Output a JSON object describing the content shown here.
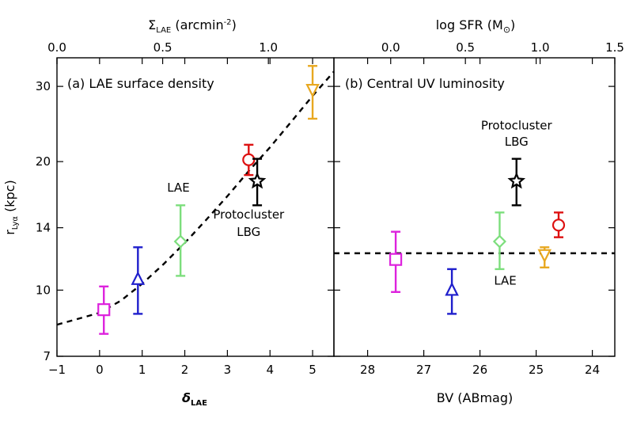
{
  "chart_data": [
    {
      "type": "scatter",
      "panel_label": "(a) LAE surface density",
      "xlabel": "δ_LAE",
      "xlabel_main": "δ",
      "xlabel_sub": "LAE",
      "top_xlabel_main": "Σ",
      "top_xlabel_sub": "LAE",
      "top_xlabel_rest": " (arcmin",
      "top_xlabel_sup": "-2",
      "top_xlabel_end": ")",
      "ylabel_main": "r",
      "ylabel_sub": "Lyα",
      "ylabel_rest": " (kpc)",
      "xlim": [
        -1,
        5.5
      ],
      "top_xlim": [
        0.0,
        1.31
      ],
      "ylim": [
        7,
        35
      ],
      "yscale": "log",
      "xticks": [
        "−1",
        "0",
        "1",
        "2",
        "3",
        "4",
        "5"
      ],
      "top_xticks": [
        "0.0",
        "0.5",
        "1.0"
      ],
      "yticks": [
        "7",
        "10",
        "14",
        "20",
        "30"
      ],
      "points": [
        {
          "x": 0.1,
          "y": 9.0,
          "y_lo": 7.9,
          "y_hi": 10.2,
          "marker": "square",
          "color": "#dd22dd"
        },
        {
          "x": 0.9,
          "y": 10.6,
          "y_lo": 8.8,
          "y_hi": 12.6,
          "marker": "triangle-up",
          "color": "#1f1fcc"
        },
        {
          "x": 1.9,
          "y": 13.0,
          "y_lo": 10.8,
          "y_hi": 15.8,
          "marker": "diamond",
          "color": "#7cde7c"
        },
        {
          "x": 3.5,
          "y": 20.2,
          "y_lo": 18.6,
          "y_hi": 21.9,
          "marker": "circle",
          "color": "#dd1111"
        },
        {
          "x": 3.7,
          "y": 18.0,
          "y_lo": 15.8,
          "y_hi": 20.3,
          "marker": "star",
          "color": "#000000"
        },
        {
          "x": 5.0,
          "y": 29.5,
          "y_lo": 25.2,
          "y_hi": 33.5,
          "marker": "triangle-down",
          "color": "#e8a820"
        }
      ],
      "fit_line": {
        "style": "dashed",
        "x": [
          -1,
          0,
          0.5,
          1,
          1.5,
          2,
          2.5,
          3,
          3.5,
          4,
          4.5,
          5,
          5.5
        ],
        "y": [
          8.3,
          8.85,
          9.45,
          10.35,
          11.5,
          12.9,
          14.6,
          16.6,
          19.0,
          21.6,
          24.8,
          28.5,
          32.5
        ]
      },
      "annotations": [
        {
          "text": "LAE",
          "x": 1.85,
          "y": 17.0
        },
        {
          "text": "Protocluster",
          "x": 3.5,
          "y": 14.7
        },
        {
          "text": "LBG",
          "x": 3.5,
          "y": 13.4
        }
      ]
    },
    {
      "type": "scatter",
      "panel_label": "(b) Central UV luminosity",
      "xlabel": "BV (ABmag)",
      "top_xlabel": "log SFR (M☉)",
      "top_xlabel_main": "log SFR (M",
      "top_xlabel_sym": "⊙",
      "top_xlabel_end": ")",
      "xlim": [
        28.6,
        23.6
      ],
      "x_reversed": true,
      "top_xlim": [
        -0.38,
        1.5
      ],
      "ylim": [
        7,
        35
      ],
      "yscale": "log",
      "xticks": [
        "28",
        "27",
        "26",
        "25",
        "24"
      ],
      "top_xticks": [
        "0.0",
        "0.5",
        "1.0",
        "1.5"
      ],
      "points": [
        {
          "x": 27.5,
          "y": 11.8,
          "y_lo": 9.9,
          "y_hi": 13.7,
          "marker": "square",
          "color": "#dd22dd"
        },
        {
          "x": 26.5,
          "y": 10.0,
          "y_lo": 8.8,
          "y_hi": 11.2,
          "marker": "triangle-up",
          "color": "#1f1fcc"
        },
        {
          "x": 25.65,
          "y": 13.0,
          "y_lo": 11.2,
          "y_hi": 15.2,
          "marker": "diamond",
          "color": "#7cde7c"
        },
        {
          "x": 25.35,
          "y": 18.0,
          "y_lo": 15.8,
          "y_hi": 20.3,
          "marker": "star",
          "color": "#000000"
        },
        {
          "x": 24.85,
          "y": 12.1,
          "y_lo": 11.3,
          "y_hi": 12.6,
          "marker": "triangle-down",
          "color": "#e8a820"
        },
        {
          "x": 24.6,
          "y": 14.2,
          "y_lo": 13.3,
          "y_hi": 15.2,
          "marker": "circle",
          "color": "#dd1111"
        }
      ],
      "hline": {
        "y": 12.2,
        "style": "dashed"
      },
      "annotations": [
        {
          "text": "Protocluster",
          "x": 25.35,
          "y": 23.8
        },
        {
          "text": "LBG",
          "x": 25.35,
          "y": 21.8
        },
        {
          "text": "LAE",
          "x": 25.55,
          "y": 10.3
        }
      ]
    }
  ]
}
